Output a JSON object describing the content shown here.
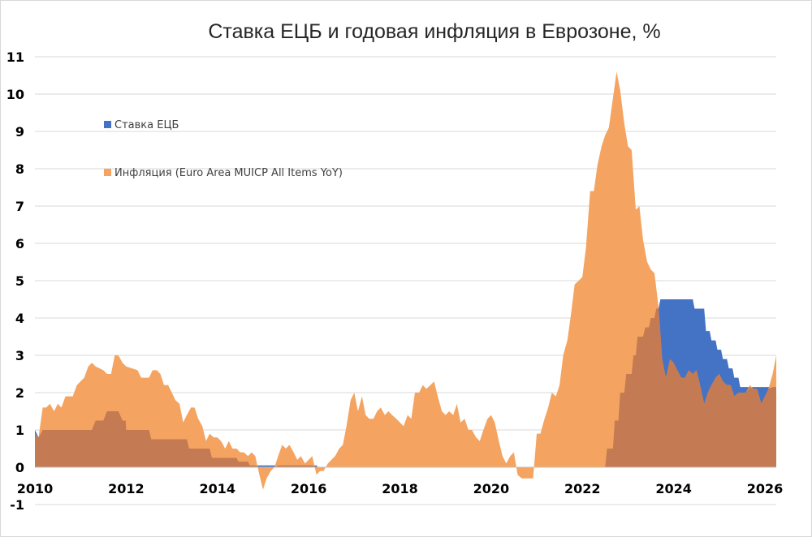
{
  "chart_data": {
    "type": "area",
    "title": "Ставка ЕЦБ  и годовая инфляция в Еврозоне, %",
    "xlabel": "",
    "ylabel": "",
    "xlim": [
      2010.0,
      2026.25
    ],
    "ylim": [
      -1,
      11
    ],
    "y_ticks": [
      "-1",
      "0",
      "1",
      "2",
      "3",
      "4",
      "5",
      "6",
      "7",
      "8",
      "9",
      "10",
      "11"
    ],
    "x_ticks": [
      "2010",
      "2012",
      "2014",
      "2016",
      "2018",
      "2020",
      "2022",
      "2024",
      "2026"
    ],
    "grid": "horizontal",
    "legend_position": "top-left",
    "colors": {
      "rate": "#4472C4",
      "inflation": "#F4A460",
      "overlap": "#C47A52"
    },
    "series": [
      {
        "name": "Ставка ЕЦБ",
        "points": [
          [
            2010.0,
            1.0
          ],
          [
            2010.08,
            0.8
          ],
          [
            2010.17,
            1.0
          ],
          [
            2011.25,
            1.0
          ],
          [
            2011.33,
            1.25
          ],
          [
            2011.5,
            1.25
          ],
          [
            2011.58,
            1.5
          ],
          [
            2011.83,
            1.5
          ],
          [
            2011.92,
            1.25
          ],
          [
            2011.99,
            1.25
          ],
          [
            2012.0,
            1.0
          ],
          [
            2012.5,
            1.0
          ],
          [
            2012.55,
            0.75
          ],
          [
            2013.33,
            0.75
          ],
          [
            2013.38,
            0.5
          ],
          [
            2013.83,
            0.5
          ],
          [
            2013.88,
            0.25
          ],
          [
            2014.42,
            0.25
          ],
          [
            2014.46,
            0.15
          ],
          [
            2014.67,
            0.15
          ],
          [
            2014.71,
            0.05
          ],
          [
            2016.17,
            0.05
          ],
          [
            2016.21,
            0.0
          ],
          [
            2022.5,
            0.0
          ],
          [
            2022.54,
            0.5
          ],
          [
            2022.67,
            0.5
          ],
          [
            2022.71,
            1.25
          ],
          [
            2022.79,
            1.25
          ],
          [
            2022.83,
            2.0
          ],
          [
            2022.92,
            2.0
          ],
          [
            2022.96,
            2.5
          ],
          [
            2023.08,
            2.5
          ],
          [
            2023.12,
            3.0
          ],
          [
            2023.17,
            3.0
          ],
          [
            2023.21,
            3.5
          ],
          [
            2023.33,
            3.5
          ],
          [
            2023.38,
            3.75
          ],
          [
            2023.46,
            3.75
          ],
          [
            2023.5,
            4.0
          ],
          [
            2023.58,
            4.0
          ],
          [
            2023.62,
            4.25
          ],
          [
            2023.67,
            4.25
          ],
          [
            2023.71,
            4.5
          ],
          [
            2024.42,
            4.5
          ],
          [
            2024.46,
            4.25
          ],
          [
            2024.67,
            4.25
          ],
          [
            2024.71,
            3.65
          ],
          [
            2024.79,
            3.65
          ],
          [
            2024.83,
            3.4
          ],
          [
            2024.92,
            3.4
          ],
          [
            2024.96,
            3.15
          ],
          [
            2025.04,
            3.15
          ],
          [
            2025.08,
            2.9
          ],
          [
            2025.17,
            2.9
          ],
          [
            2025.21,
            2.65
          ],
          [
            2025.29,
            2.65
          ],
          [
            2025.33,
            2.4
          ],
          [
            2025.42,
            2.4
          ],
          [
            2025.46,
            2.15
          ],
          [
            2026.25,
            2.15
          ]
        ]
      },
      {
        "name": "Инфляция (Euro Area MUICP All Items YoY)",
        "points": [
          [
            2010.0,
            0.9
          ],
          [
            2010.08,
            0.8
          ],
          [
            2010.17,
            1.6
          ],
          [
            2010.25,
            1.6
          ],
          [
            2010.33,
            1.7
          ],
          [
            2010.42,
            1.5
          ],
          [
            2010.5,
            1.7
          ],
          [
            2010.58,
            1.6
          ],
          [
            2010.67,
            1.9
          ],
          [
            2010.83,
            1.9
          ],
          [
            2010.92,
            2.2
          ],
          [
            2011.08,
            2.4
          ],
          [
            2011.17,
            2.7
          ],
          [
            2011.25,
            2.8
          ],
          [
            2011.33,
            2.7
          ],
          [
            2011.5,
            2.6
          ],
          [
            2011.58,
            2.5
          ],
          [
            2011.67,
            2.5
          ],
          [
            2011.75,
            3.0
          ],
          [
            2011.83,
            3.0
          ],
          [
            2011.92,
            2.8
          ],
          [
            2012.0,
            2.7
          ],
          [
            2012.25,
            2.6
          ],
          [
            2012.33,
            2.4
          ],
          [
            2012.5,
            2.4
          ],
          [
            2012.58,
            2.6
          ],
          [
            2012.67,
            2.6
          ],
          [
            2012.75,
            2.5
          ],
          [
            2012.83,
            2.2
          ],
          [
            2012.92,
            2.2
          ],
          [
            2013.0,
            2.0
          ],
          [
            2013.08,
            1.8
          ],
          [
            2013.17,
            1.7
          ],
          [
            2013.25,
            1.2
          ],
          [
            2013.33,
            1.4
          ],
          [
            2013.42,
            1.6
          ],
          [
            2013.5,
            1.6
          ],
          [
            2013.58,
            1.3
          ],
          [
            2013.67,
            1.1
          ],
          [
            2013.75,
            0.7
          ],
          [
            2013.83,
            0.9
          ],
          [
            2013.92,
            0.8
          ],
          [
            2014.0,
            0.8
          ],
          [
            2014.08,
            0.7
          ],
          [
            2014.17,
            0.5
          ],
          [
            2014.25,
            0.7
          ],
          [
            2014.33,
            0.5
          ],
          [
            2014.42,
            0.5
          ],
          [
            2014.5,
            0.4
          ],
          [
            2014.58,
            0.4
          ],
          [
            2014.67,
            0.3
          ],
          [
            2014.75,
            0.4
          ],
          [
            2014.83,
            0.3
          ],
          [
            2014.92,
            -0.2
          ],
          [
            2015.0,
            -0.6
          ],
          [
            2015.08,
            -0.3
          ],
          [
            2015.17,
            -0.1
          ],
          [
            2015.25,
            0.0
          ],
          [
            2015.33,
            0.3
          ],
          [
            2015.42,
            0.6
          ],
          [
            2015.5,
            0.5
          ],
          [
            2015.58,
            0.6
          ],
          [
            2015.67,
            0.4
          ],
          [
            2015.75,
            0.2
          ],
          [
            2015.83,
            0.3
          ],
          [
            2015.92,
            0.1
          ],
          [
            2016.0,
            0.2
          ],
          [
            2016.08,
            0.3
          ],
          [
            2016.17,
            -0.2
          ],
          [
            2016.25,
            -0.1
          ],
          [
            2016.33,
            -0.1
          ],
          [
            2016.42,
            0.1
          ],
          [
            2016.5,
            0.2
          ],
          [
            2016.58,
            0.3
          ],
          [
            2016.67,
            0.5
          ],
          [
            2016.75,
            0.6
          ],
          [
            2016.83,
            1.1
          ],
          [
            2016.92,
            1.8
          ],
          [
            2017.0,
            2.0
          ],
          [
            2017.08,
            1.5
          ],
          [
            2017.17,
            1.9
          ],
          [
            2017.25,
            1.4
          ],
          [
            2017.33,
            1.3
          ],
          [
            2017.42,
            1.3
          ],
          [
            2017.5,
            1.5
          ],
          [
            2017.58,
            1.6
          ],
          [
            2017.67,
            1.4
          ],
          [
            2017.75,
            1.5
          ],
          [
            2017.83,
            1.4
          ],
          [
            2017.92,
            1.3
          ],
          [
            2018.0,
            1.2
          ],
          [
            2018.08,
            1.1
          ],
          [
            2018.17,
            1.4
          ],
          [
            2018.25,
            1.3
          ],
          [
            2018.33,
            2.0
          ],
          [
            2018.42,
            2.0
          ],
          [
            2018.5,
            2.2
          ],
          [
            2018.58,
            2.1
          ],
          [
            2018.67,
            2.2
          ],
          [
            2018.75,
            2.3
          ],
          [
            2018.83,
            1.9
          ],
          [
            2018.92,
            1.5
          ],
          [
            2019.0,
            1.4
          ],
          [
            2019.08,
            1.5
          ],
          [
            2019.17,
            1.4
          ],
          [
            2019.25,
            1.7
          ],
          [
            2019.33,
            1.2
          ],
          [
            2019.42,
            1.3
          ],
          [
            2019.5,
            1.0
          ],
          [
            2019.58,
            1.0
          ],
          [
            2019.67,
            0.8
          ],
          [
            2019.75,
            0.7
          ],
          [
            2019.83,
            1.0
          ],
          [
            2019.92,
            1.3
          ],
          [
            2020.0,
            1.4
          ],
          [
            2020.08,
            1.2
          ],
          [
            2020.17,
            0.7
          ],
          [
            2020.25,
            0.3
          ],
          [
            2020.33,
            0.1
          ],
          [
            2020.42,
            0.3
          ],
          [
            2020.5,
            0.4
          ],
          [
            2020.58,
            -0.2
          ],
          [
            2020.67,
            -0.3
          ],
          [
            2020.83,
            -0.3
          ],
          [
            2020.92,
            -0.3
          ],
          [
            2021.0,
            0.9
          ],
          [
            2021.08,
            0.9
          ],
          [
            2021.17,
            1.3
          ],
          [
            2021.25,
            1.6
          ],
          [
            2021.33,
            2.0
          ],
          [
            2021.42,
            1.9
          ],
          [
            2021.5,
            2.2
          ],
          [
            2021.58,
            3.0
          ],
          [
            2021.67,
            3.4
          ],
          [
            2021.75,
            4.1
          ],
          [
            2021.83,
            4.9
          ],
          [
            2021.92,
            5.0
          ],
          [
            2022.0,
            5.1
          ],
          [
            2022.08,
            5.9
          ],
          [
            2022.17,
            7.4
          ],
          [
            2022.25,
            7.4
          ],
          [
            2022.33,
            8.1
          ],
          [
            2022.42,
            8.6
          ],
          [
            2022.5,
            8.9
          ],
          [
            2022.58,
            9.1
          ],
          [
            2022.67,
            9.9
          ],
          [
            2022.75,
            10.6
          ],
          [
            2022.83,
            10.1
          ],
          [
            2022.92,
            9.2
          ],
          [
            2023.0,
            8.6
          ],
          [
            2023.08,
            8.5
          ],
          [
            2023.17,
            6.9
          ],
          [
            2023.25,
            7.0
          ],
          [
            2023.33,
            6.1
          ],
          [
            2023.42,
            5.5
          ],
          [
            2023.5,
            5.3
          ],
          [
            2023.58,
            5.2
          ],
          [
            2023.67,
            4.3
          ],
          [
            2023.75,
            2.9
          ],
          [
            2023.83,
            2.4
          ],
          [
            2023.92,
            2.9
          ],
          [
            2024.0,
            2.8
          ],
          [
            2024.08,
            2.6
          ],
          [
            2024.17,
            2.4
          ],
          [
            2024.25,
            2.4
          ],
          [
            2024.33,
            2.6
          ],
          [
            2024.42,
            2.5
          ],
          [
            2024.5,
            2.6
          ],
          [
            2024.58,
            2.2
          ],
          [
            2024.67,
            1.7
          ],
          [
            2024.75,
            2.0
          ],
          [
            2024.83,
            2.2
          ],
          [
            2024.92,
            2.4
          ],
          [
            2025.0,
            2.5
          ],
          [
            2025.08,
            2.3
          ],
          [
            2025.17,
            2.2
          ],
          [
            2025.25,
            2.2
          ],
          [
            2025.33,
            1.9
          ],
          [
            2025.42,
            2.0
          ],
          [
            2025.5,
            2.0
          ],
          [
            2025.58,
            2.0
          ],
          [
            2025.67,
            2.2
          ],
          [
            2025.75,
            2.1
          ],
          [
            2025.83,
            2.1
          ],
          [
            2025.92,
            1.7
          ],
          [
            2026.0,
            1.9
          ],
          [
            2026.08,
            2.1
          ],
          [
            2026.17,
            2.5
          ],
          [
            2026.25,
            3.0
          ]
        ]
      }
    ]
  }
}
